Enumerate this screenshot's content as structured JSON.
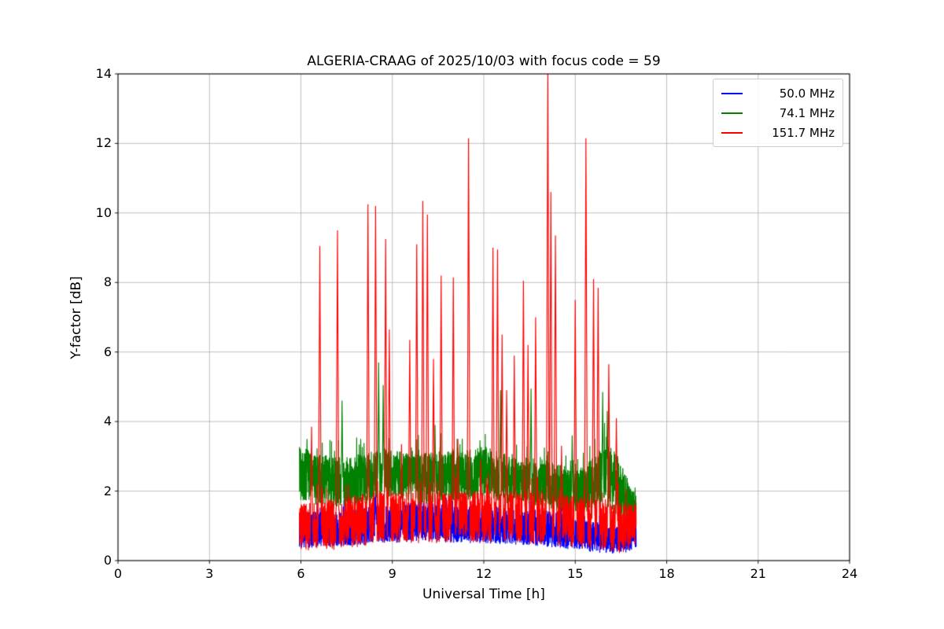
{
  "chart_data": {
    "type": "line",
    "title": "ALGERIA-CRAAG of 2025/10/03 with focus code = 59",
    "xlabel": "Universal Time [h]",
    "ylabel": "Y-factor [dB]",
    "xlim": [
      0,
      24
    ],
    "ylim": [
      0,
      14
    ],
    "xticks": [
      0,
      3,
      6,
      9,
      12,
      15,
      18,
      21,
      24
    ],
    "yticks": [
      0,
      2,
      4,
      6,
      8,
      10,
      12,
      14
    ],
    "grid": true,
    "grid_color": "#b0b0b0",
    "axis_color": "#000000",
    "background": "#ffffff",
    "legend_position": "upper right",
    "x_range_of_data": [
      5.95,
      17.0
    ],
    "series": [
      {
        "name": "50.0 MHz",
        "color": "#0000ff",
        "envelope": [
          [
            5.95,
            0.35,
            1.4
          ],
          [
            7.0,
            0.4,
            1.45
          ],
          [
            8.0,
            0.45,
            1.55
          ],
          [
            9.0,
            0.5,
            1.6
          ],
          [
            10.0,
            0.55,
            1.7
          ],
          [
            11.0,
            0.5,
            1.6
          ],
          [
            12.0,
            0.5,
            1.55
          ],
          [
            13.0,
            0.45,
            1.5
          ],
          [
            14.0,
            0.4,
            1.45
          ],
          [
            15.0,
            0.3,
            1.25
          ],
          [
            16.0,
            0.2,
            1.05
          ],
          [
            16.6,
            0.2,
            0.95
          ],
          [
            17.0,
            0.35,
            1.1
          ]
        ],
        "spikes": [
          [
            8.45,
            1.95
          ]
        ]
      },
      {
        "name": "74.1 MHz",
        "color": "#008000",
        "envelope": [
          [
            5.95,
            1.75,
            3.3
          ],
          [
            6.5,
            1.6,
            3.1
          ],
          [
            7.0,
            1.5,
            3.0
          ],
          [
            7.5,
            1.55,
            3.0
          ],
          [
            8.0,
            1.6,
            3.1
          ],
          [
            8.5,
            1.7,
            3.2
          ],
          [
            9.0,
            1.8,
            3.2
          ],
          [
            9.5,
            1.7,
            3.1
          ],
          [
            10.0,
            1.6,
            3.1
          ],
          [
            10.5,
            1.7,
            3.15
          ],
          [
            11.0,
            1.7,
            3.2
          ],
          [
            11.5,
            1.75,
            3.2
          ],
          [
            12.0,
            1.8,
            3.3
          ],
          [
            12.5,
            1.7,
            3.15
          ],
          [
            13.0,
            1.6,
            3.0
          ],
          [
            13.5,
            1.6,
            2.95
          ],
          [
            14.0,
            1.5,
            2.9
          ],
          [
            14.5,
            1.4,
            2.8
          ],
          [
            15.0,
            1.3,
            2.6
          ],
          [
            15.5,
            1.4,
            2.9
          ],
          [
            16.0,
            1.5,
            3.5
          ],
          [
            16.4,
            1.3,
            3.0
          ],
          [
            16.8,
            1.0,
            2.2
          ],
          [
            17.0,
            0.9,
            1.9
          ]
        ],
        "spikes": [
          [
            6.2,
            3.5
          ],
          [
            7.35,
            4.6
          ],
          [
            8.55,
            5.7
          ],
          [
            8.7,
            5.05
          ],
          [
            10.4,
            3.9
          ],
          [
            12.55,
            4.9
          ],
          [
            13.55,
            4.95
          ],
          [
            14.9,
            3.6
          ],
          [
            15.9,
            4.85
          ],
          [
            16.05,
            4.3
          ]
        ]
      },
      {
        "name": "151.7 MHz",
        "color": "#ff0000",
        "envelope": [
          [
            5.95,
            0.25,
            1.6
          ],
          [
            6.5,
            0.3,
            1.75
          ],
          [
            7.0,
            0.3,
            1.8
          ],
          [
            8.0,
            0.4,
            1.95
          ],
          [
            9.0,
            0.5,
            2.0
          ],
          [
            10.0,
            0.5,
            2.0
          ],
          [
            11.0,
            0.5,
            2.0
          ],
          [
            12.0,
            0.5,
            2.0
          ],
          [
            13.0,
            0.5,
            2.0
          ],
          [
            14.0,
            0.45,
            2.0
          ],
          [
            15.0,
            0.35,
            1.85
          ],
          [
            16.0,
            0.3,
            1.8
          ],
          [
            16.5,
            0.2,
            1.7
          ],
          [
            17.0,
            0.45,
            1.6
          ]
        ],
        "spikes": [
          [
            6.35,
            3.85
          ],
          [
            6.62,
            9.05
          ],
          [
            7.2,
            9.5
          ],
          [
            8.2,
            10.25
          ],
          [
            8.45,
            10.2
          ],
          [
            8.78,
            9.25
          ],
          [
            8.9,
            6.65
          ],
          [
            9.3,
            3.35
          ],
          [
            9.57,
            6.35
          ],
          [
            9.8,
            9.1
          ],
          [
            10.0,
            10.35
          ],
          [
            10.15,
            9.95
          ],
          [
            10.35,
            5.8
          ],
          [
            10.6,
            8.2
          ],
          [
            11.0,
            8.15
          ],
          [
            11.15,
            3.5
          ],
          [
            11.5,
            12.15
          ],
          [
            11.9,
            2.9
          ],
          [
            12.3,
            9.0
          ],
          [
            12.45,
            8.95
          ],
          [
            12.6,
            6.5
          ],
          [
            12.75,
            4.9
          ],
          [
            13.0,
            5.9
          ],
          [
            13.3,
            8.05
          ],
          [
            13.45,
            6.2
          ],
          [
            13.7,
            7.0
          ],
          [
            14.1,
            14.3
          ],
          [
            14.2,
            10.6
          ],
          [
            14.35,
            9.35
          ],
          [
            14.55,
            3.3
          ],
          [
            15.0,
            7.5
          ],
          [
            15.35,
            12.15
          ],
          [
            15.6,
            8.1
          ],
          [
            15.75,
            7.85
          ],
          [
            16.1,
            5.65
          ],
          [
            16.35,
            4.1
          ]
        ]
      }
    ]
  }
}
